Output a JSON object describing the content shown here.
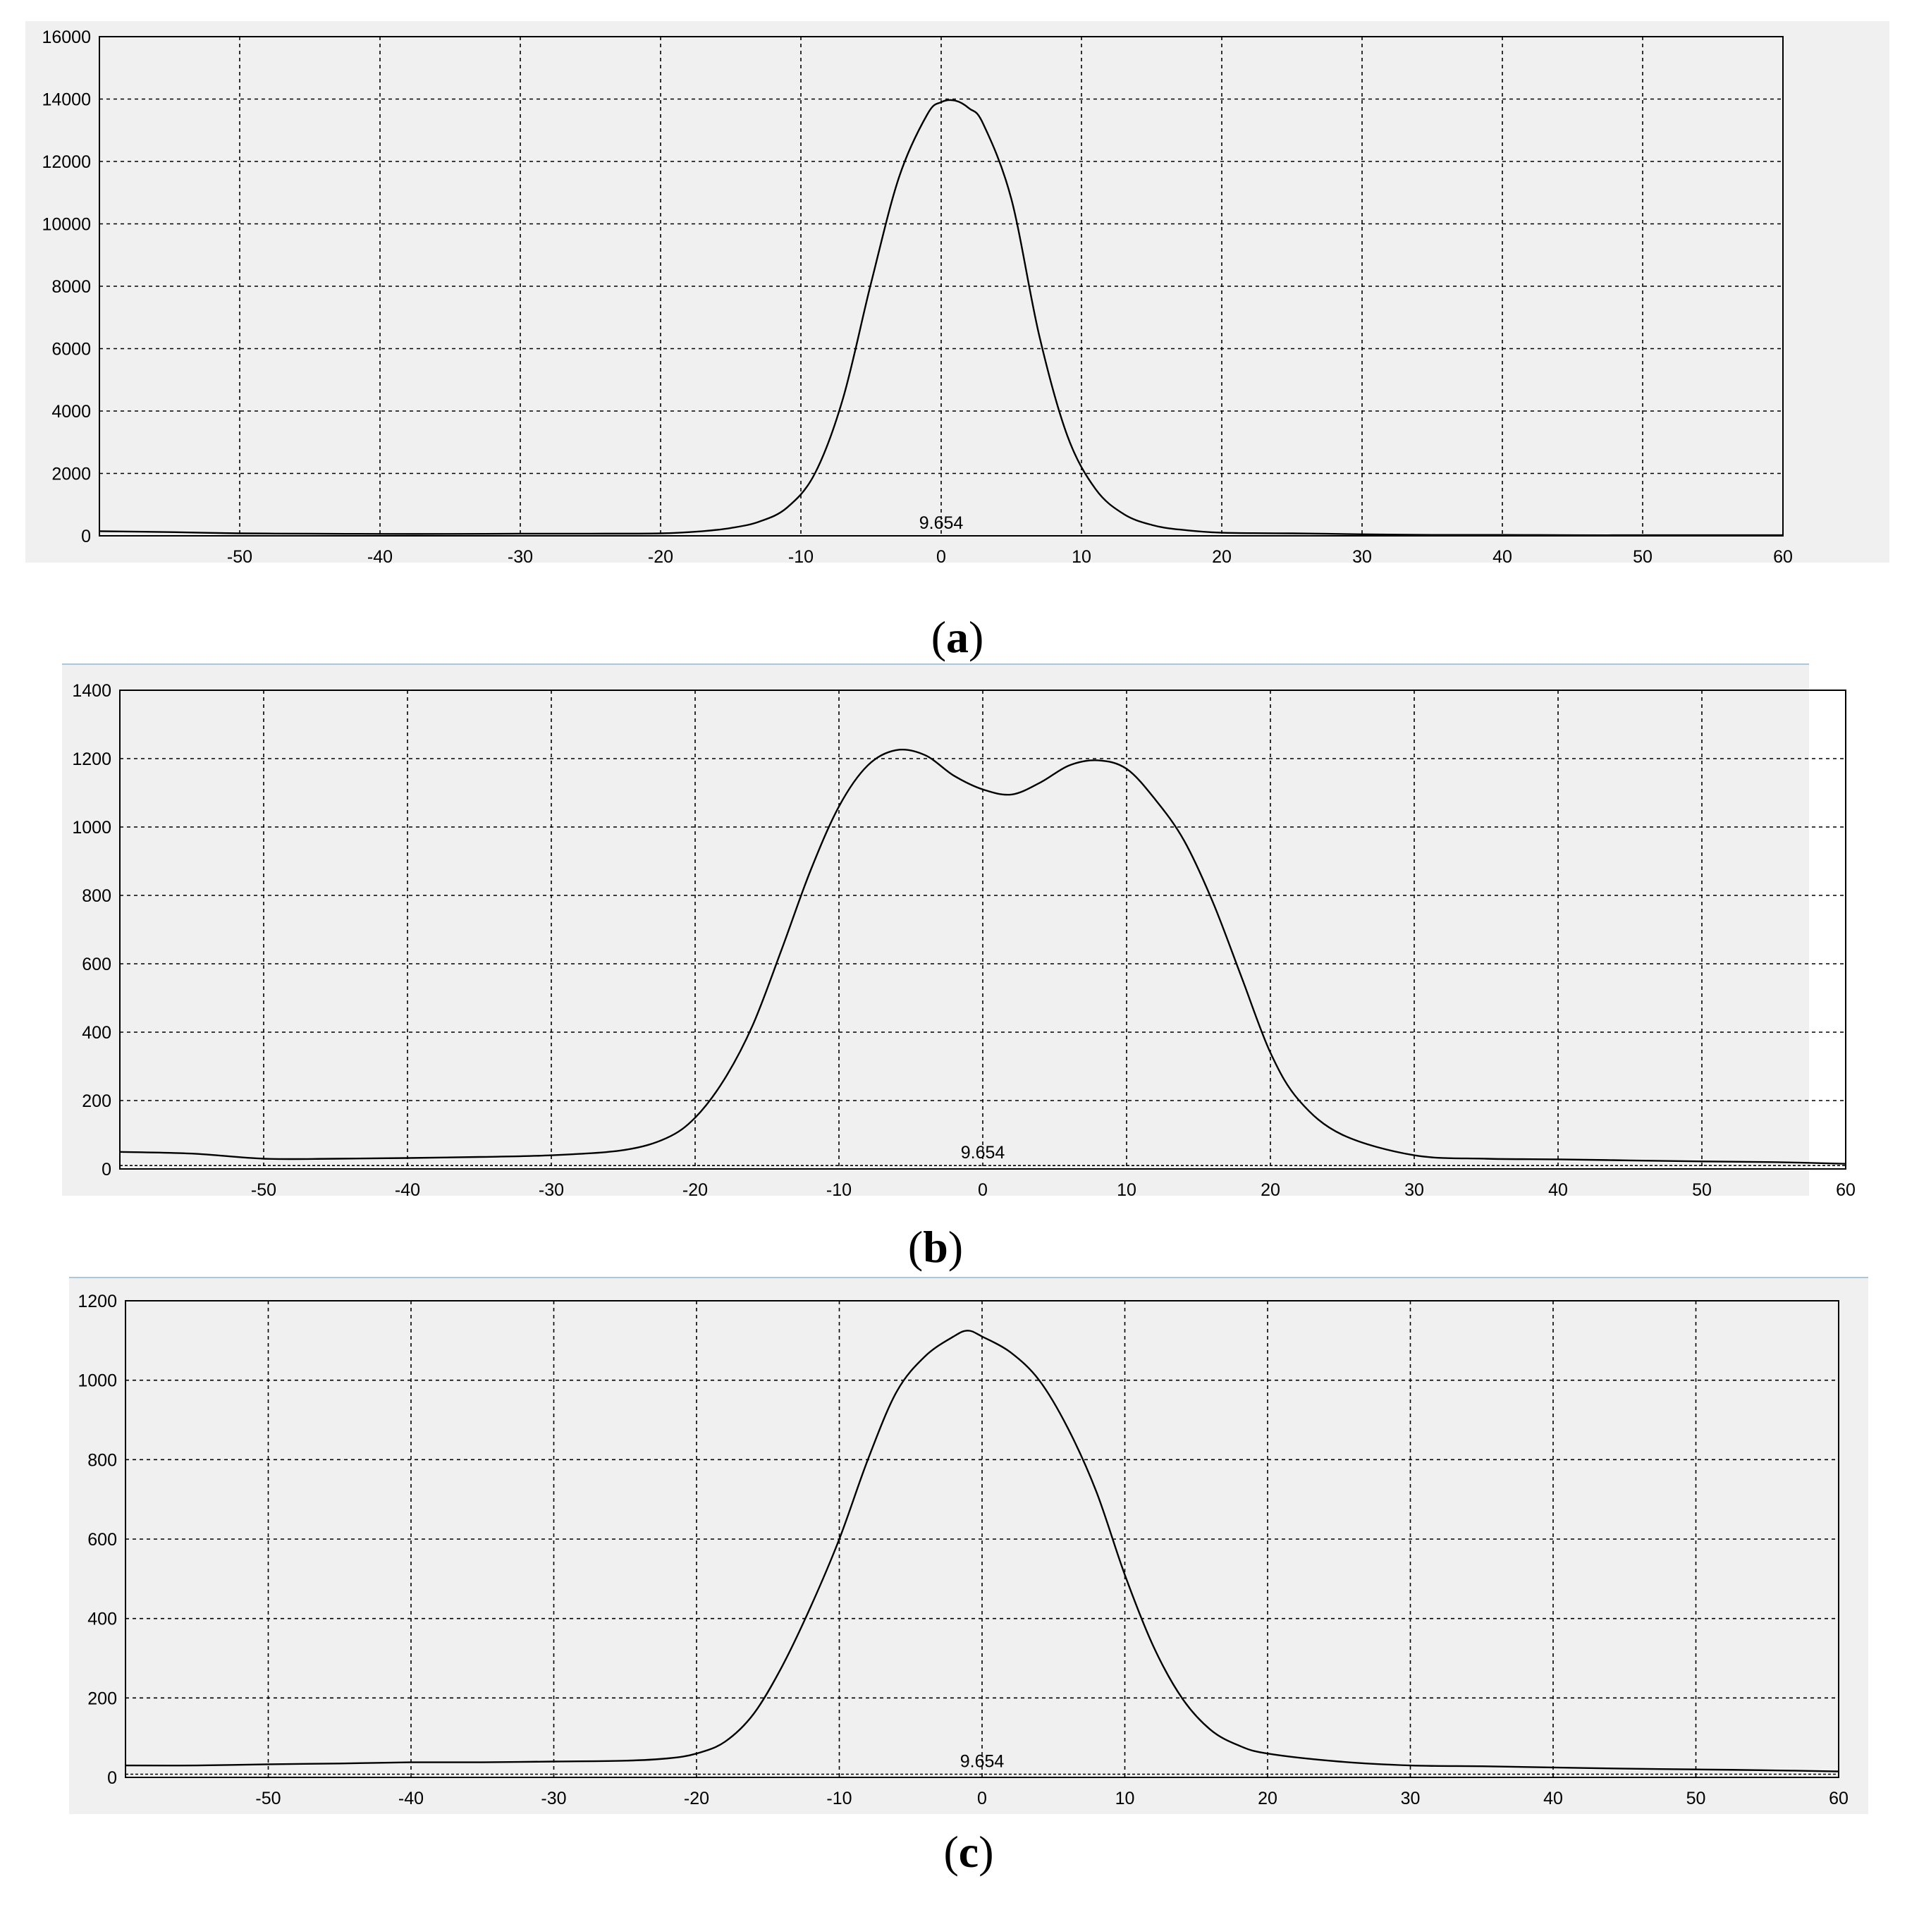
{
  "panels": [
    {
      "label": "(a)",
      "caption_letter": "a",
      "marker_text": "9.654",
      "chart_data": {
        "type": "line",
        "title": "",
        "xlabel": "",
        "ylabel": "",
        "xlim": [
          -60,
          60
        ],
        "ylim": [
          0,
          16000
        ],
        "grid": true,
        "x_ticks": [
          "-50",
          "-40",
          "-30",
          "-20",
          "-10",
          "0",
          "10",
          "20",
          "30",
          "40",
          "50",
          "60"
        ],
        "y_ticks": [
          "0",
          "2000",
          "4000",
          "6000",
          "8000",
          "10000",
          "12000",
          "14000",
          "16000"
        ],
        "x": [
          -60,
          -55,
          -50,
          -45,
          -40,
          -35,
          -30,
          -25,
          -20,
          -17,
          -15,
          -13,
          -11,
          -9,
          -7,
          -5,
          -3,
          -1,
          0,
          1,
          2,
          3,
          5,
          7,
          9,
          11,
          13,
          15,
          17,
          20,
          25,
          30,
          35,
          40,
          45,
          50,
          55,
          60
        ],
        "series": [
          {
            "values": [
              150,
              120,
              80,
              70,
              60,
              60,
              70,
              70,
              80,
              150,
              250,
              450,
              900,
              2000,
              4400,
              8100,
              11500,
              13500,
              13900,
              13950,
              13700,
              13200,
              10800,
              6400,
              3200,
              1500,
              700,
              350,
              200,
              100,
              80,
              50,
              30,
              30,
              20,
              20,
              20,
              20
            ]
          }
        ],
        "baseline": 0
      }
    },
    {
      "label": "(b)",
      "caption_letter": "b",
      "marker_text": "9.654",
      "chart_data": {
        "type": "line",
        "title": "",
        "xlabel": "",
        "ylabel": "",
        "xlim": [
          -60,
          60
        ],
        "ylim": [
          0,
          1400
        ],
        "grid": true,
        "x_ticks": [
          "-50",
          "-40",
          "-30",
          "-20",
          "-10",
          "0",
          "10",
          "20",
          "30",
          "40",
          "50",
          "60"
        ],
        "y_ticks": [
          "0",
          "200",
          "400",
          "600",
          "800",
          "1000",
          "1200",
          "1400"
        ],
        "x": [
          -60,
          -55,
          -50,
          -45,
          -40,
          -35,
          -30,
          -25,
          -22,
          -20,
          -18,
          -16,
          -14,
          -12,
          -10,
          -8,
          -6,
          -4,
          -2,
          0,
          2,
          4,
          6,
          8,
          10,
          12,
          14,
          16,
          18,
          20,
          22,
          25,
          30,
          35,
          40,
          45,
          50,
          55,
          60
        ],
        "series": [
          {
            "values": [
              50,
              45,
              30,
              30,
              32,
              35,
              40,
              55,
              90,
              150,
              260,
              420,
              640,
              870,
              1060,
              1180,
              1225,
              1210,
              1150,
              1110,
              1095,
              1130,
              1180,
              1195,
              1170,
              1080,
              960,
              780,
              560,
              340,
              200,
              100,
              40,
              30,
              28,
              25,
              22,
              20,
              15
            ]
          }
        ],
        "baseline": 10
      }
    },
    {
      "label": "(c)",
      "caption_letter": "c",
      "marker_text": "9.654",
      "chart_data": {
        "type": "line",
        "title": "",
        "xlabel": "",
        "ylabel": "",
        "xlim": [
          -60,
          60
        ],
        "ylim": [
          0,
          1200
        ],
        "grid": true,
        "x_ticks": [
          "-50",
          "-40",
          "-30",
          "-20",
          "-10",
          "0",
          "10",
          "20",
          "30",
          "40",
          "50",
          "60"
        ],
        "y_ticks": [
          "0",
          "200",
          "400",
          "600",
          "800",
          "1000",
          "1200"
        ],
        "x": [
          -60,
          -55,
          -50,
          -45,
          -40,
          -35,
          -30,
          -25,
          -22,
          -20,
          -18,
          -16,
          -14,
          -12,
          -10,
          -8,
          -6,
          -4,
          -2,
          -1,
          0,
          2,
          4,
          6,
          8,
          10,
          12,
          14,
          16,
          18,
          20,
          25,
          30,
          35,
          40,
          45,
          50,
          55,
          60
        ],
        "series": [
          {
            "values": [
              30,
              30,
              33,
              35,
              38,
              38,
              40,
              42,
              48,
              60,
              90,
              160,
              280,
              430,
              600,
              800,
              970,
              1060,
              1110,
              1125,
              1110,
              1070,
              1000,
              880,
              720,
              510,
              330,
              200,
              120,
              80,
              60,
              40,
              30,
              28,
              25,
              22,
              20,
              18,
              15
            ]
          }
        ],
        "baseline": 8
      }
    }
  ],
  "colors": {
    "panel_bg": "#f0f0f0",
    "plot_bg": "#f0f0f0",
    "line": "#000000",
    "grid": "#000000",
    "panel_border": "#a9c8de"
  }
}
